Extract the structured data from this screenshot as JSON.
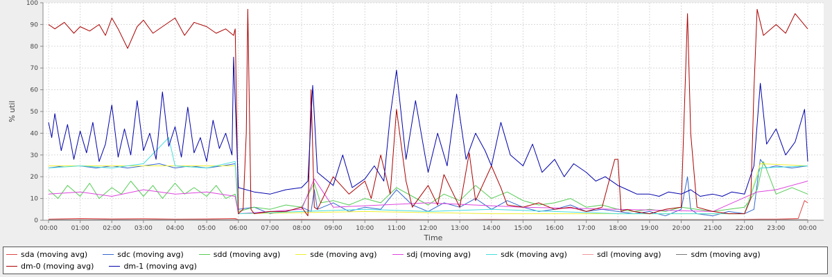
{
  "chart_data": {
    "type": "line",
    "title": "",
    "xlabel": "Time",
    "ylabel": "% util",
    "xlim": [
      0,
      24
    ],
    "ylim": [
      0,
      100
    ],
    "grid": true,
    "legend_position": "bottom",
    "x_ticks": [
      "00:00",
      "01:00",
      "02:00",
      "03:00",
      "04:00",
      "05:00",
      "06:00",
      "07:00",
      "08:00",
      "09:00",
      "10:00",
      "11:00",
      "12:00",
      "13:00",
      "14:00",
      "15:00",
      "16:00",
      "17:00",
      "18:00",
      "19:00",
      "20:00",
      "21:00",
      "22:00",
      "23:00",
      "00:00"
    ],
    "y_ticks": [
      0,
      10,
      20,
      30,
      40,
      50,
      60,
      70,
      80,
      90,
      100
    ],
    "series": [
      {
        "name": "sda (moving avg)",
        "color": "#dd4444",
        "x": [
          0,
          1,
          2,
          3,
          4,
          5,
          5.9,
          6,
          7,
          8,
          9,
          10,
          11,
          12,
          13,
          14,
          15,
          16,
          17,
          18,
          19,
          20,
          21,
          22,
          22.5,
          23,
          23.7,
          23.9,
          24
        ],
        "y": [
          0.5,
          0.8,
          0.6,
          0.7,
          0.5,
          0.6,
          0.8,
          0.3,
          0.3,
          0.4,
          0.3,
          0.3,
          0.4,
          0.3,
          0.3,
          0.4,
          0.3,
          0.3,
          0.3,
          0.3,
          0.3,
          0.3,
          0.3,
          0.4,
          0.5,
          0.5,
          0.8,
          9,
          8
        ]
      },
      {
        "name": "sdc (moving avg)",
        "color": "#3366cc",
        "x": [
          0,
          0.5,
          1,
          1.5,
          2,
          2.5,
          3,
          3.5,
          4,
          4.5,
          5,
          5.5,
          5.9,
          6,
          6.5,
          7,
          7.5,
          8,
          8.3,
          8.4,
          8.5,
          9,
          9.5,
          10,
          10.5,
          11,
          11.5,
          12,
          12.5,
          13,
          13.5,
          14,
          14.5,
          15,
          15.5,
          16,
          16.5,
          17,
          17.5,
          18,
          18.5,
          19,
          19.5,
          20,
          20.2,
          20.3,
          20.5,
          21,
          21.5,
          22,
          22.3,
          22.5,
          22.7,
          23,
          23.5,
          24
        ],
        "y": [
          24,
          25,
          25,
          24,
          25,
          24,
          25,
          26,
          24,
          25,
          24,
          25,
          26,
          5,
          6,
          3,
          4,
          6,
          4,
          14,
          5,
          8,
          4,
          6,
          5,
          14,
          7,
          4,
          8,
          6,
          10,
          5,
          9,
          6,
          4,
          5,
          7,
          4,
          5,
          4,
          3,
          4,
          2,
          5,
          20,
          5,
          3,
          2,
          4,
          3,
          5,
          28,
          24,
          25,
          24,
          25
        ]
      },
      {
        "name": "sdd (moving avg)",
        "color": "#55cc55",
        "x": [
          0,
          0.3,
          0.6,
          1,
          1.3,
          1.6,
          2,
          2.3,
          2.6,
          3,
          3.3,
          3.6,
          4,
          4.3,
          4.6,
          5,
          5.3,
          5.6,
          5.9,
          6,
          6.5,
          7,
          7.5,
          8,
          8.4,
          8.6,
          9,
          9.5,
          10,
          10.5,
          11,
          11.5,
          12,
          12.5,
          13,
          13.5,
          14,
          14.5,
          15,
          15.5,
          16,
          16.5,
          17,
          17.5,
          18,
          18.5,
          19,
          19.5,
          20,
          20.5,
          21,
          21.5,
          22,
          22.4,
          22.6,
          23,
          23.5,
          24
        ],
        "y": [
          14,
          10,
          16,
          11,
          17,
          10,
          15,
          12,
          18,
          11,
          16,
          10,
          17,
          12,
          15,
          11,
          16,
          10,
          12,
          4,
          6,
          5,
          7,
          6,
          17,
          8,
          9,
          7,
          10,
          8,
          15,
          11,
          7,
          12,
          9,
          16,
          10,
          13,
          9,
          7,
          8,
          10,
          6,
          7,
          5,
          4,
          5,
          4,
          6,
          5,
          4,
          5,
          6,
          14,
          27,
          12,
          15,
          12
        ]
      },
      {
        "name": "sde (moving avg)",
        "color": "#eeee33",
        "x": [
          0,
          4,
          5.9,
          6,
          10,
          14,
          18,
          22,
          22.5,
          24
        ],
        "y": [
          25,
          25,
          25,
          3,
          4,
          3,
          3,
          3,
          26,
          25
        ]
      },
      {
        "name": "sdj (moving avg)",
        "color": "#dd44dd",
        "x": [
          0,
          1,
          2,
          3,
          4,
          5,
          5.9,
          6,
          8,
          8.4,
          9,
          12,
          15,
          18,
          21,
          22.4,
          23,
          24
        ],
        "y": [
          12,
          13,
          11,
          14,
          12,
          13,
          11,
          3,
          5,
          19,
          6,
          8,
          6,
          5,
          4,
          13,
          14,
          18
        ]
      },
      {
        "name": "sdk (moving avg)",
        "color": "#44dddd",
        "x": [
          0,
          1,
          2,
          3,
          3.8,
          4,
          5,
          5.9,
          6,
          8,
          10,
          12,
          14,
          16,
          18,
          20,
          22,
          22.5,
          24
        ],
        "y": [
          24,
          25,
          24,
          26,
          38,
          25,
          24,
          27,
          3,
          4,
          5,
          4,
          5,
          4,
          3,
          3,
          3,
          24,
          25
        ]
      },
      {
        "name": "sdl (moving avg)",
        "color": "#ee9999",
        "x": [
          0,
          6,
          12,
          18,
          24
        ],
        "y": [
          0.3,
          0.3,
          0.3,
          0.3,
          0.3
        ]
      },
      {
        "name": "sdm (moving avg)",
        "color": "#777777",
        "x": [
          0,
          6,
          12,
          18,
          24
        ],
        "y": [
          0.2,
          0.2,
          0.2,
          0.2,
          0.2
        ]
      },
      {
        "name": "dm-0 (moving avg)",
        "color": "#aa0000",
        "x": [
          0,
          0.2,
          0.5,
          0.8,
          1,
          1.3,
          1.6,
          1.8,
          2,
          2.2,
          2.5,
          2.8,
          3,
          3.3,
          3.6,
          4,
          4.3,
          4.6,
          5,
          5.3,
          5.6,
          5.85,
          5.9,
          6,
          6.15,
          6.25,
          6.3,
          6.4,
          6.5,
          7,
          7.5,
          8,
          8.2,
          8.3,
          8.4,
          8.5,
          9,
          9.5,
          10,
          10.2,
          10.5,
          10.8,
          11,
          11.3,
          11.5,
          12,
          12.3,
          12.5,
          13,
          13.3,
          13.5,
          14,
          14.3,
          14.5,
          15,
          15.5,
          16,
          16.5,
          17,
          17.5,
          17.9,
          18,
          18.1,
          18.3,
          18.5,
          19,
          19.5,
          20,
          20.2,
          20.3,
          20.5,
          21,
          21.5,
          22,
          22.2,
          22.3,
          22.4,
          22.6,
          23,
          23.3,
          23.6,
          24
        ],
        "y": [
          90,
          88,
          91,
          86,
          89,
          87,
          90,
          85,
          93,
          88,
          79,
          89,
          92,
          86,
          89,
          93,
          85,
          91,
          89,
          86,
          88,
          85,
          88,
          3,
          5,
          40,
          97,
          5,
          3,
          4,
          4,
          6,
          2,
          60,
          6,
          5,
          20,
          12,
          18,
          10,
          30,
          12,
          51,
          18,
          6,
          16,
          7,
          21,
          6,
          31,
          9,
          25,
          15,
          7,
          6,
          8,
          5,
          6,
          4,
          6,
          28,
          28,
          4,
          5,
          4,
          3,
          5,
          6,
          95,
          40,
          6,
          4,
          3,
          3,
          10,
          60,
          97,
          85,
          90,
          86,
          95,
          88
        ]
      },
      {
        "name": "dm-1 (moving avg)",
        "color": "#0000aa",
        "x": [
          0,
          0.1,
          0.2,
          0.4,
          0.6,
          0.8,
          1,
          1.2,
          1.4,
          1.6,
          1.8,
          2,
          2.2,
          2.4,
          2.6,
          2.8,
          3,
          3.2,
          3.4,
          3.6,
          3.8,
          4,
          4.2,
          4.4,
          4.6,
          4.8,
          5,
          5.2,
          5.4,
          5.6,
          5.8,
          5.85,
          5.9,
          6,
          6.5,
          7,
          7.5,
          8,
          8.2,
          8.35,
          8.5,
          9,
          9.3,
          9.6,
          10,
          10.3,
          10.6,
          10.8,
          11,
          11.3,
          11.6,
          11.9,
          12,
          12.3,
          12.6,
          12.9,
          13.2,
          13.5,
          13.8,
          14,
          14.3,
          14.6,
          15,
          15.3,
          15.6,
          16,
          16.3,
          16.6,
          17,
          17.3,
          17.6,
          18,
          18.3,
          18.6,
          19,
          19.3,
          19.6,
          20,
          20.3,
          20.6,
          21,
          21.3,
          21.6,
          22,
          22.3,
          22.5,
          22.7,
          23,
          23.3,
          23.6,
          23.9,
          24
        ],
        "y": [
          45,
          38,
          49,
          32,
          44,
          28,
          41,
          31,
          45,
          27,
          35,
          53,
          29,
          42,
          30,
          55,
          32,
          40,
          28,
          59,
          34,
          43,
          29,
          52,
          31,
          38,
          27,
          46,
          33,
          40,
          30,
          75,
          55,
          15,
          13,
          12,
          14,
          15,
          18,
          62,
          22,
          16,
          30,
          15,
          19,
          25,
          18,
          48,
          69,
          28,
          55,
          30,
          22,
          40,
          25,
          58,
          28,
          40,
          32,
          25,
          45,
          30,
          25,
          35,
          22,
          28,
          20,
          26,
          22,
          18,
          20,
          16,
          14,
          12,
          12,
          11,
          13,
          12,
          14,
          11,
          12,
          11,
          13,
          12,
          25,
          63,
          35,
          42,
          30,
          36,
          51,
          27
        ]
      }
    ]
  }
}
